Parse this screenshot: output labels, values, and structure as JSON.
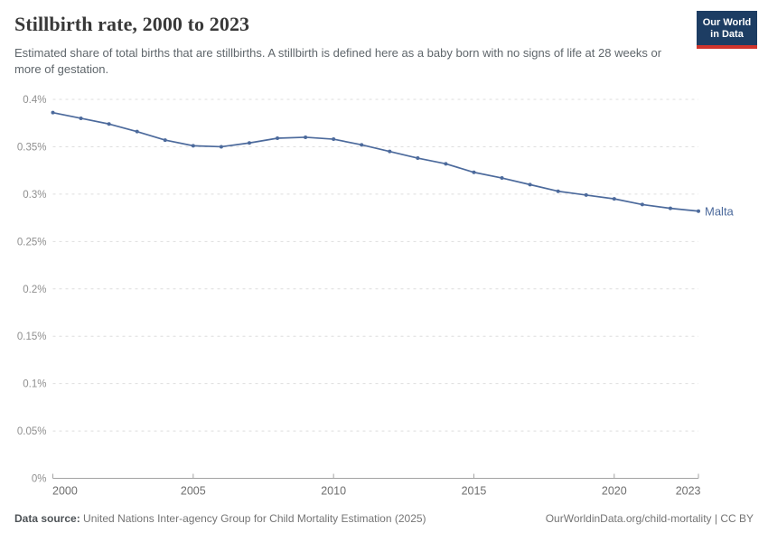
{
  "header": {
    "title": "Stillbirth rate, 2000 to 2023",
    "subtitle": "Estimated share of total births that are stillbirths. A stillbirth is defined here as a baby born with no signs of life at 28 weeks or more of gestation.",
    "logo": {
      "line1": "Our World",
      "line2": "in Data"
    }
  },
  "footer": {
    "datasource_label": "Data source:",
    "datasource_value": "United Nations Inter-agency Group for Child Mortality Estimation (2025)",
    "attribution": "OurWorldinData.org/child-mortality | CC BY"
  },
  "chart_data": {
    "type": "line",
    "title": "Stillbirth rate, 2000 to 2023",
    "xlabel": "",
    "ylabel": "",
    "unit": "%",
    "grid": "dashed-horizontal",
    "legend_position": "end-of-line",
    "ylim": [
      0,
      0.4
    ],
    "ytick_values": [
      0,
      0.05,
      0.1,
      0.15,
      0.2,
      0.25,
      0.3,
      0.35,
      0.4
    ],
    "ytick_labels": [
      "0%",
      "0.05%",
      "0.1%",
      "0.15%",
      "0.2%",
      "0.25%",
      "0.3%",
      "0.35%",
      "0.4%"
    ],
    "xtick_values": [
      2000,
      2005,
      2010,
      2015,
      2020,
      2023
    ],
    "x": [
      2000,
      2001,
      2002,
      2003,
      2004,
      2005,
      2006,
      2007,
      2008,
      2009,
      2010,
      2011,
      2012,
      2013,
      2014,
      2015,
      2016,
      2017,
      2018,
      2019,
      2020,
      2021,
      2022,
      2023
    ],
    "series": [
      {
        "name": "Malta",
        "color": "#4C6A9C",
        "values": [
          0.386,
          0.38,
          0.374,
          0.366,
          0.357,
          0.351,
          0.35,
          0.354,
          0.359,
          0.36,
          0.358,
          0.352,
          0.345,
          0.338,
          0.332,
          0.323,
          0.317,
          0.31,
          0.303,
          0.299,
          0.295,
          0.289,
          0.285,
          0.282
        ]
      }
    ]
  },
  "colors": {
    "line": "#4C6A9C",
    "gridline": "#dedede",
    "axis": "#a3a3a3",
    "ytick_text": "#8f8f8f",
    "xtick_text": "#6e6e6e",
    "logo_navy": "#1d3d63",
    "logo_red": "#d0342c"
  }
}
